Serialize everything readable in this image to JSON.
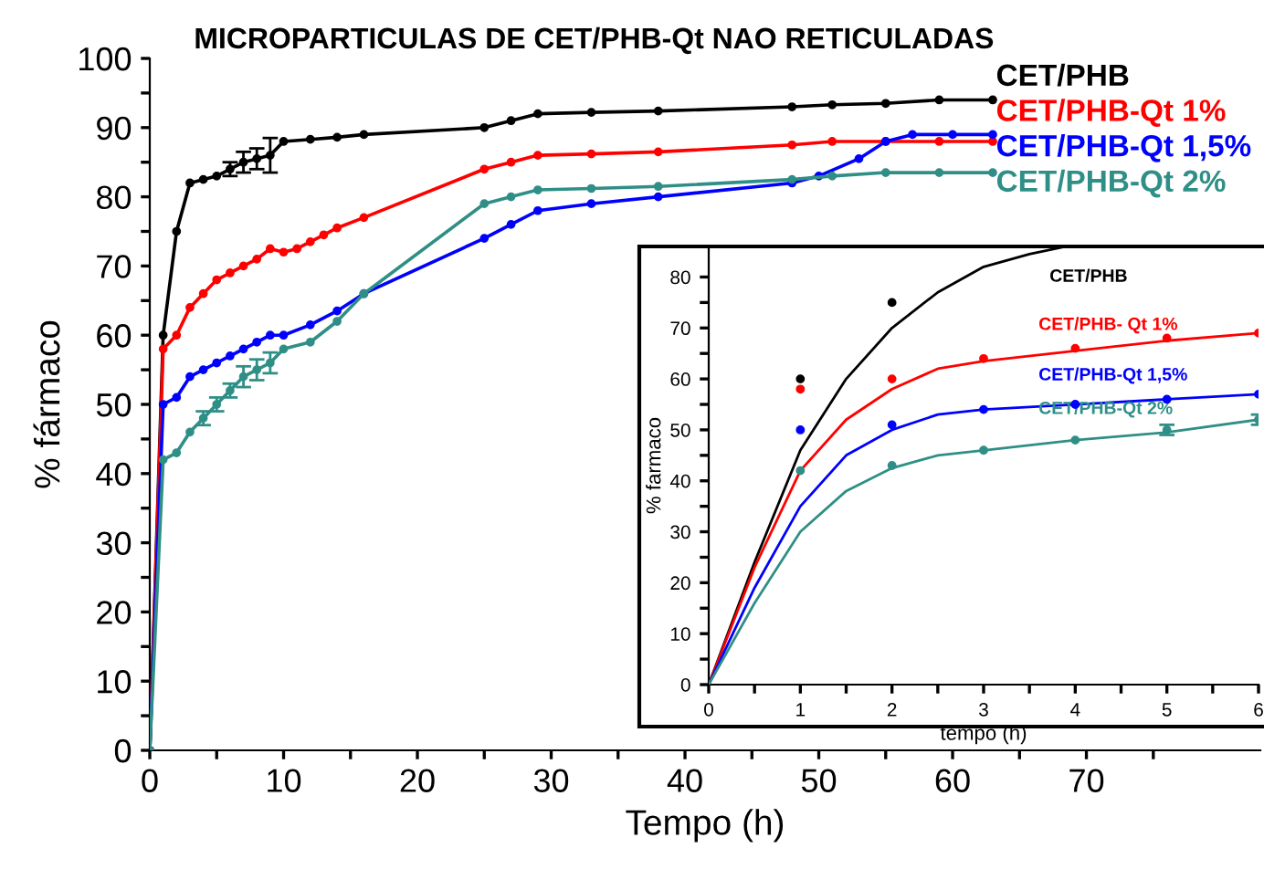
{
  "chart_data": [
    {
      "type": "line",
      "title": "MICROPARTICULAS DE CET/PHB-Qt NAO RETICULADAS",
      "xlabel": "Tempo (h)",
      "ylabel": "% fármaco",
      "xlim": [
        0,
        83
      ],
      "ylim": [
        0,
        100
      ],
      "xticks": [
        0,
        {
          "value": 5,
          "label": null
        },
        10,
        {
          "value": 15,
          "label": null
        },
        20,
        {
          "value": 25,
          "label": null
        },
        30,
        {
          "value": 35,
          "label": null
        },
        40,
        {
          "value": 45,
          "label": null
        },
        50,
        {
          "value": 55,
          "label": null
        },
        60,
        {
          "value": 65,
          "label": null
        },
        70,
        {
          "value": 75,
          "label": null
        }
      ],
      "yticks": [
        0,
        {
          "value": 5,
          "label": null
        },
        10,
        {
          "value": 15,
          "label": null
        },
        20,
        {
          "value": 25,
          "label": null
        },
        30,
        {
          "value": 35,
          "label": null
        },
        40,
        {
          "value": 45,
          "label": null
        },
        50,
        {
          "value": 55,
          "label": null
        },
        60,
        {
          "value": 65,
          "label": null
        },
        70,
        {
          "value": 75,
          "label": null
        },
        80,
        {
          "value": 85,
          "label": null
        },
        90,
        {
          "value": 95,
          "label": null
        },
        100
      ],
      "marker": "circle",
      "grid": false,
      "series": [
        {
          "name": "CET/PHB",
          "color": "#000000",
          "x": [
            0,
            1,
            2,
            3,
            4,
            5,
            6,
            7,
            8,
            9,
            10,
            12,
            14,
            16,
            25,
            27,
            29,
            33,
            38,
            48,
            51,
            55,
            59,
            63
          ],
          "values": [
            0,
            60,
            75,
            82,
            82.5,
            83,
            84,
            85,
            85.5,
            86,
            88,
            88.3,
            88.6,
            89,
            90,
            91,
            92,
            92.2,
            92.4,
            93,
            93.3,
            93.5,
            94,
            94
          ],
          "errors": [
            null,
            null,
            null,
            null,
            null,
            null,
            1,
            1.5,
            1.5,
            2.5,
            null,
            null,
            null,
            null,
            null,
            null,
            null,
            null,
            null,
            null,
            null,
            null,
            null,
            null
          ]
        },
        {
          "name": "CET/PHB-Qt 1%",
          "color": "#ff0000",
          "x": [
            0,
            1,
            2,
            3,
            4,
            5,
            6,
            7,
            8,
            9,
            10,
            11,
            12,
            13,
            14,
            16,
            25,
            27,
            29,
            33,
            38,
            48,
            51,
            55,
            59,
            63
          ],
          "values": [
            0,
            58,
            60,
            64,
            66,
            68,
            69,
            70,
            71,
            72.5,
            72,
            72.5,
            73.5,
            74.5,
            75.5,
            77,
            84,
            85,
            86,
            86.2,
            86.5,
            87.5,
            88,
            88,
            88,
            88
          ]
        },
        {
          "name": "CET/PHB-Qt 1,5%",
          "color": "#0000ff",
          "x": [
            0,
            1,
            2,
            3,
            4,
            5,
            6,
            7,
            8,
            9,
            10,
            12,
            14,
            16,
            25,
            27,
            29,
            33,
            38,
            48,
            50,
            53,
            55,
            57,
            60,
            63
          ],
          "values": [
            0,
            50,
            51,
            54,
            55,
            56,
            57,
            58,
            59,
            60,
            60,
            61.5,
            63.5,
            66,
            74,
            76,
            78,
            79,
            80,
            82,
            83,
            85.5,
            88,
            89,
            89,
            89
          ]
        },
        {
          "name": "CET/PHB-Qt 2%",
          "color": "#2f8f86",
          "x": [
            0,
            1,
            2,
            3,
            4,
            5,
            6,
            7,
            8,
            9,
            10,
            12,
            14,
            16,
            25,
            27,
            29,
            33,
            38,
            48,
            51,
            55,
            59,
            63
          ],
          "values": [
            0,
            42,
            43,
            46,
            48,
            50,
            52,
            54,
            55,
            56,
            58,
            59,
            62,
            66,
            79,
            80,
            81,
            81.2,
            81.5,
            82.5,
            83,
            83.5,
            83.5,
            83.5
          ],
          "errors": [
            null,
            null,
            null,
            null,
            1,
            1,
            1,
            1.5,
            1.5,
            1.5,
            null,
            null,
            null,
            null,
            null,
            null,
            null,
            null,
            null,
            null,
            null,
            null,
            null,
            null
          ]
        }
      ]
    },
    {
      "type": "scatter",
      "xlabel": "tempo (h)",
      "ylabel": "% farmaco",
      "xlim": [
        0,
        6
      ],
      "ylim": [
        0,
        86
      ],
      "xticks": [
        0,
        {
          "value": 0.5,
          "label": null
        },
        1,
        {
          "value": 1.5,
          "label": null
        },
        2,
        {
          "value": 2.5,
          "label": null
        },
        3,
        {
          "value": 3.5,
          "label": null
        },
        4,
        {
          "value": 4.5,
          "label": null
        },
        5,
        {
          "value": 5.5,
          "label": null
        },
        6
      ],
      "yticks": [
        0,
        {
          "value": 5,
          "label": null
        },
        10,
        {
          "value": 15,
          "label": null
        },
        20,
        {
          "value": 25,
          "label": null
        },
        30,
        {
          "value": 35,
          "label": null
        },
        40,
        {
          "value": 45,
          "label": null
        },
        50,
        {
          "value": 55,
          "label": null
        },
        60,
        {
          "value": 65,
          "label": null
        },
        70,
        {
          "value": 75,
          "label": null
        },
        80
      ],
      "grid": false,
      "series": [
        {
          "type": "line",
          "color": "#000000",
          "x": [
            0,
            0.5,
            1,
            1.5,
            2,
            2.5,
            3,
            3.5,
            3.9
          ],
          "values": [
            0,
            24,
            46,
            60,
            70,
            77,
            82,
            84.5,
            86
          ]
        },
        {
          "type": "line",
          "color": "#ff0000",
          "x": [
            0,
            0.5,
            1,
            1.5,
            2,
            2.5,
            3,
            4,
            5,
            6
          ],
          "values": [
            0,
            23,
            42,
            52,
            58,
            62,
            63.5,
            65.5,
            67.5,
            69
          ]
        },
        {
          "type": "line",
          "color": "#0000ff",
          "x": [
            0,
            0.5,
            1,
            1.5,
            2,
            2.5,
            3,
            4,
            5,
            6
          ],
          "values": [
            0,
            19,
            35,
            45,
            50,
            53,
            54,
            55,
            56,
            57
          ]
        },
        {
          "type": "line",
          "color": "#2f8f86",
          "x": [
            0,
            0.5,
            1,
            1.5,
            2,
            2.5,
            3,
            4,
            5,
            6
          ],
          "values": [
            0,
            16,
            30,
            38,
            42.5,
            45,
            46,
            48,
            49.5,
            52
          ]
        },
        {
          "name": "CET/PHB",
          "color": "#000000",
          "x": [
            1,
            2
          ],
          "values": [
            60,
            75
          ]
        },
        {
          "name": "CET/PHB- Qt 1%",
          "color": "#ff0000",
          "x": [
            1,
            2,
            3,
            4,
            5,
            6
          ],
          "values": [
            58,
            60,
            64,
            66,
            68,
            69
          ]
        },
        {
          "name": "CET/PHB-Qt 1,5%",
          "color": "#0000ff",
          "x": [
            1,
            2,
            3,
            4,
            5,
            6
          ],
          "values": [
            50,
            51,
            54,
            55,
            56,
            57
          ]
        },
        {
          "name": "CET/PHB-Qt 2%",
          "color": "#2f8f86",
          "x": [
            1,
            2,
            3,
            4,
            5,
            6
          ],
          "values": [
            42,
            43,
            46,
            48,
            50,
            52
          ],
          "errors": [
            null,
            null,
            null,
            null,
            1,
            1
          ]
        }
      ]
    }
  ]
}
